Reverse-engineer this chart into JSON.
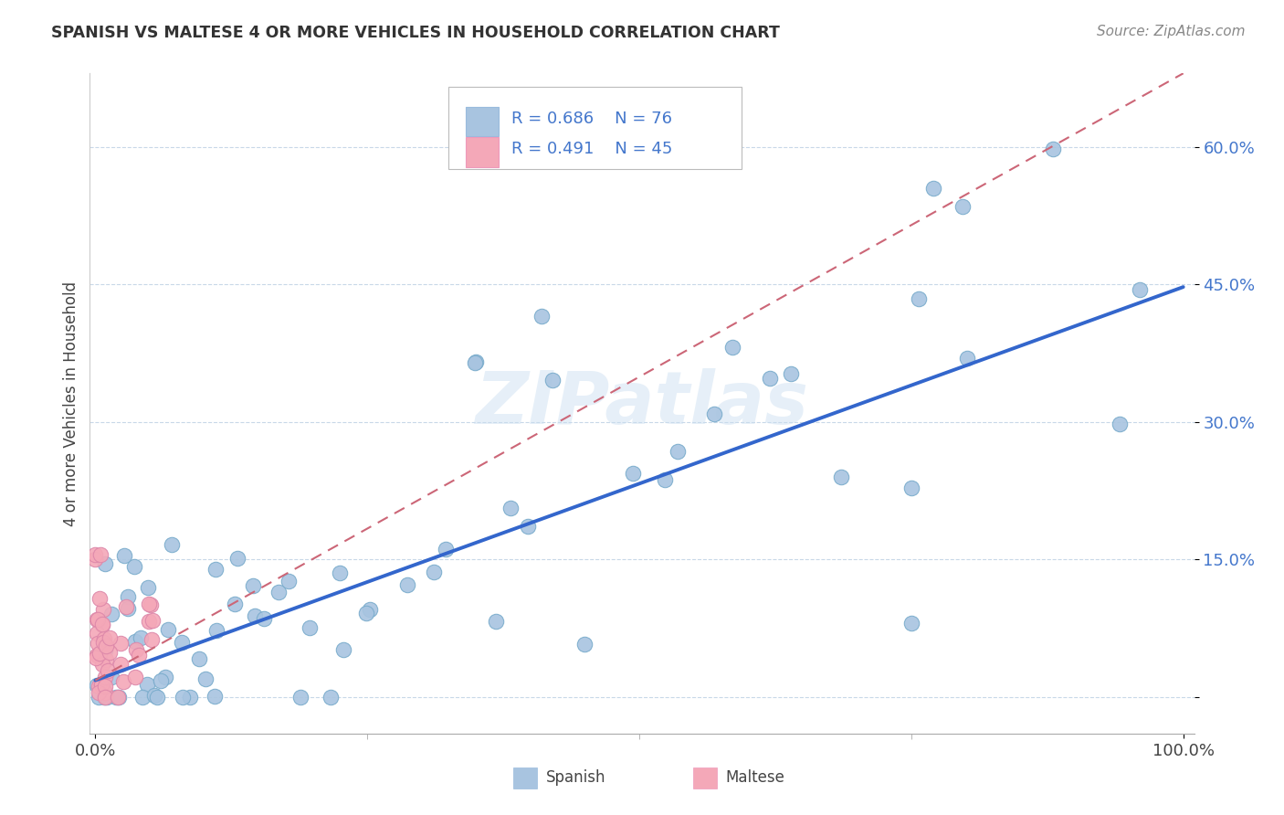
{
  "title": "SPANISH VS MALTESE 4 OR MORE VEHICLES IN HOUSEHOLD CORRELATION CHART",
  "source": "Source: ZipAtlas.com",
  "ylabel": "4 or more Vehicles in Household",
  "watermark": "ZIPatlas",
  "spanish_R": 0.686,
  "spanish_N": 76,
  "maltese_R": 0.491,
  "maltese_N": 45,
  "spanish_color": "#a8c4e0",
  "maltese_color": "#f4a8b8",
  "spanish_line_color": "#3366cc",
  "maltese_line_color": "#cc6677",
  "background_color": "#ffffff",
  "grid_color": "#c8d8e8",
  "ytick_color": "#4477cc",
  "ytick_values": [
    0.0,
    0.15,
    0.3,
    0.45,
    0.6
  ],
  "ytick_labels": [
    "",
    "15.0%",
    "30.0%",
    "45.0%",
    "60.0%"
  ],
  "xlim": [
    -0.005,
    1.01
  ],
  "ylim": [
    -0.04,
    0.68
  ],
  "sp_line_x0": 0.0,
  "sp_line_y0": 0.018,
  "sp_line_x1": 1.0,
  "sp_line_y1": 0.447,
  "mt_line_x0": 0.0,
  "mt_line_y0": 0.018,
  "mt_line_x1": 1.0,
  "mt_line_y1": 0.68
}
